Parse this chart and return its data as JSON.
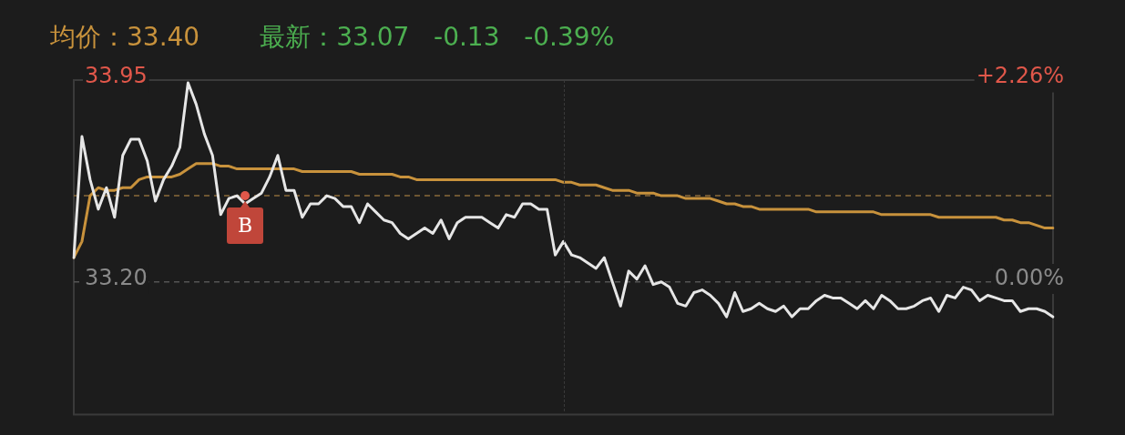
{
  "chart_data": {
    "type": "line",
    "title": "均价：33.40",
    "subtitle": "最新：33.07   -0.13   -0.39%",
    "categories": [
      null,
      null,
      null,
      null,
      null,
      null,
      null,
      null,
      null,
      null,
      null,
      null,
      null,
      null,
      null,
      null,
      null,
      null,
      null,
      null,
      null,
      null,
      null,
      null,
      null,
      null,
      null,
      null,
      null,
      null,
      null,
      null,
      null,
      null,
      null,
      null,
      null,
      null,
      null,
      null,
      null,
      null,
      null,
      null,
      null,
      null,
      null,
      null,
      null,
      null,
      null,
      null,
      null,
      null,
      null,
      null,
      null,
      null,
      null,
      null,
      null,
      null,
      null,
      null,
      null,
      null,
      null,
      null,
      null,
      null,
      null,
      null,
      null,
      null,
      null,
      null,
      null,
      null,
      null,
      null,
      null,
      null,
      null,
      null,
      null,
      null,
      null,
      null,
      null,
      null,
      null,
      null,
      null,
      null,
      null,
      null,
      null,
      null,
      null,
      null,
      null,
      null,
      null,
      null,
      null,
      null,
      null,
      null,
      null,
      null,
      null,
      null,
      null,
      null,
      null,
      null,
      null,
      null,
      null,
      null,
      null
    ],
    "ylim": [
      32.72,
      33.95
    ],
    "yticks": [
      {
        "value": 33.2,
        "label": "33.20"
      },
      {
        "value": 33.95,
        "label": "33.95"
      }
    ],
    "y2lim": [
      -1.45,
      2.26
    ],
    "y2ticks": [
      {
        "value": 0,
        "label": "0.00%"
      },
      {
        "value": 2.26,
        "label": "+2.26%"
      }
    ],
    "tick_labels": "y",
    "legend": false,
    "marker": "none",
    "line_style": "solid",
    "ref_lines": [
      {
        "axis": "y",
        "value": 33.52,
        "label": "B",
        "color": "#8a6a3a",
        "line_style": "dashed"
      },
      {
        "axis": "y",
        "value": 33.2,
        "color": "#555555",
        "line_style": "dashed"
      }
    ],
    "series": [
      {
        "color": "#e6e6e6",
        "values": [
          33.29,
          33.74,
          33.58,
          33.47,
          33.55,
          33.44,
          33.67,
          33.73,
          33.73,
          33.65,
          33.5,
          33.58,
          33.63,
          33.7,
          33.94,
          33.86,
          33.75,
          33.67,
          33.45,
          33.51,
          33.52,
          33.49,
          33.51,
          33.53,
          33.59,
          33.67,
          33.54,
          33.54,
          33.44,
          33.49,
          33.49,
          33.52,
          33.51,
          33.48,
          33.48,
          33.42,
          33.49,
          33.46,
          33.43,
          33.42,
          33.38,
          33.36,
          33.38,
          33.4,
          33.38,
          33.43,
          33.36,
          33.42,
          33.44,
          33.44,
          33.44,
          33.42,
          33.4,
          33.45,
          33.44,
          33.49,
          33.49,
          33.47,
          33.47,
          33.3,
          33.35,
          33.3,
          33.29,
          33.27,
          33.25,
          33.29,
          33.2,
          33.11,
          33.24,
          33.21,
          33.26,
          33.19,
          33.2,
          33.18,
          33.12,
          33.11,
          33.16,
          33.17,
          33.15,
          33.12,
          33.07,
          33.16,
          33.09,
          33.1,
          33.12,
          33.1,
          33.09,
          33.11,
          33.07,
          33.1,
          33.1,
          33.13,
          33.15,
          33.14,
          33.14,
          33.12,
          33.1,
          33.13,
          33.1,
          33.15,
          33.13,
          33.1,
          33.1,
          33.11,
          33.13,
          33.14,
          33.09,
          33.15,
          33.14,
          33.18,
          33.17,
          33.13,
          33.15,
          33.14,
          33.13,
          33.13,
          33.09,
          33.1,
          33.1,
          33.09,
          33.07
        ]
      },
      {
        "color": "#c8923c",
        "values": [
          33.29,
          33.35,
          33.52,
          33.55,
          33.54,
          33.54,
          33.55,
          33.55,
          33.58,
          33.59,
          33.59,
          33.59,
          33.59,
          33.6,
          33.62,
          33.64,
          33.64,
          33.64,
          33.63,
          33.63,
          33.62,
          33.62,
          33.62,
          33.62,
          33.62,
          33.62,
          33.62,
          33.62,
          33.61,
          33.61,
          33.61,
          33.61,
          33.61,
          33.61,
          33.61,
          33.6,
          33.6,
          33.6,
          33.6,
          33.6,
          33.59,
          33.59,
          33.58,
          33.58,
          33.58,
          33.58,
          33.58,
          33.58,
          33.58,
          33.58,
          33.58,
          33.58,
          33.58,
          33.58,
          33.58,
          33.58,
          33.58,
          33.58,
          33.58,
          33.58,
          33.57,
          33.57,
          33.56,
          33.56,
          33.56,
          33.55,
          33.54,
          33.54,
          33.54,
          33.53,
          33.53,
          33.53,
          33.52,
          33.52,
          33.52,
          33.51,
          33.51,
          33.51,
          33.51,
          33.5,
          33.49,
          33.49,
          33.48,
          33.48,
          33.47,
          33.47,
          33.47,
          33.47,
          33.47,
          33.47,
          33.47,
          33.46,
          33.46,
          33.46,
          33.46,
          33.46,
          33.46,
          33.46,
          33.46,
          33.45,
          33.45,
          33.45,
          33.45,
          33.45,
          33.45,
          33.45,
          33.44,
          33.44,
          33.44,
          33.44,
          33.44,
          33.44,
          33.44,
          33.44,
          33.43,
          33.43,
          33.42,
          33.42,
          33.41,
          33.4,
          33.4
        ]
      }
    ]
  }
}
